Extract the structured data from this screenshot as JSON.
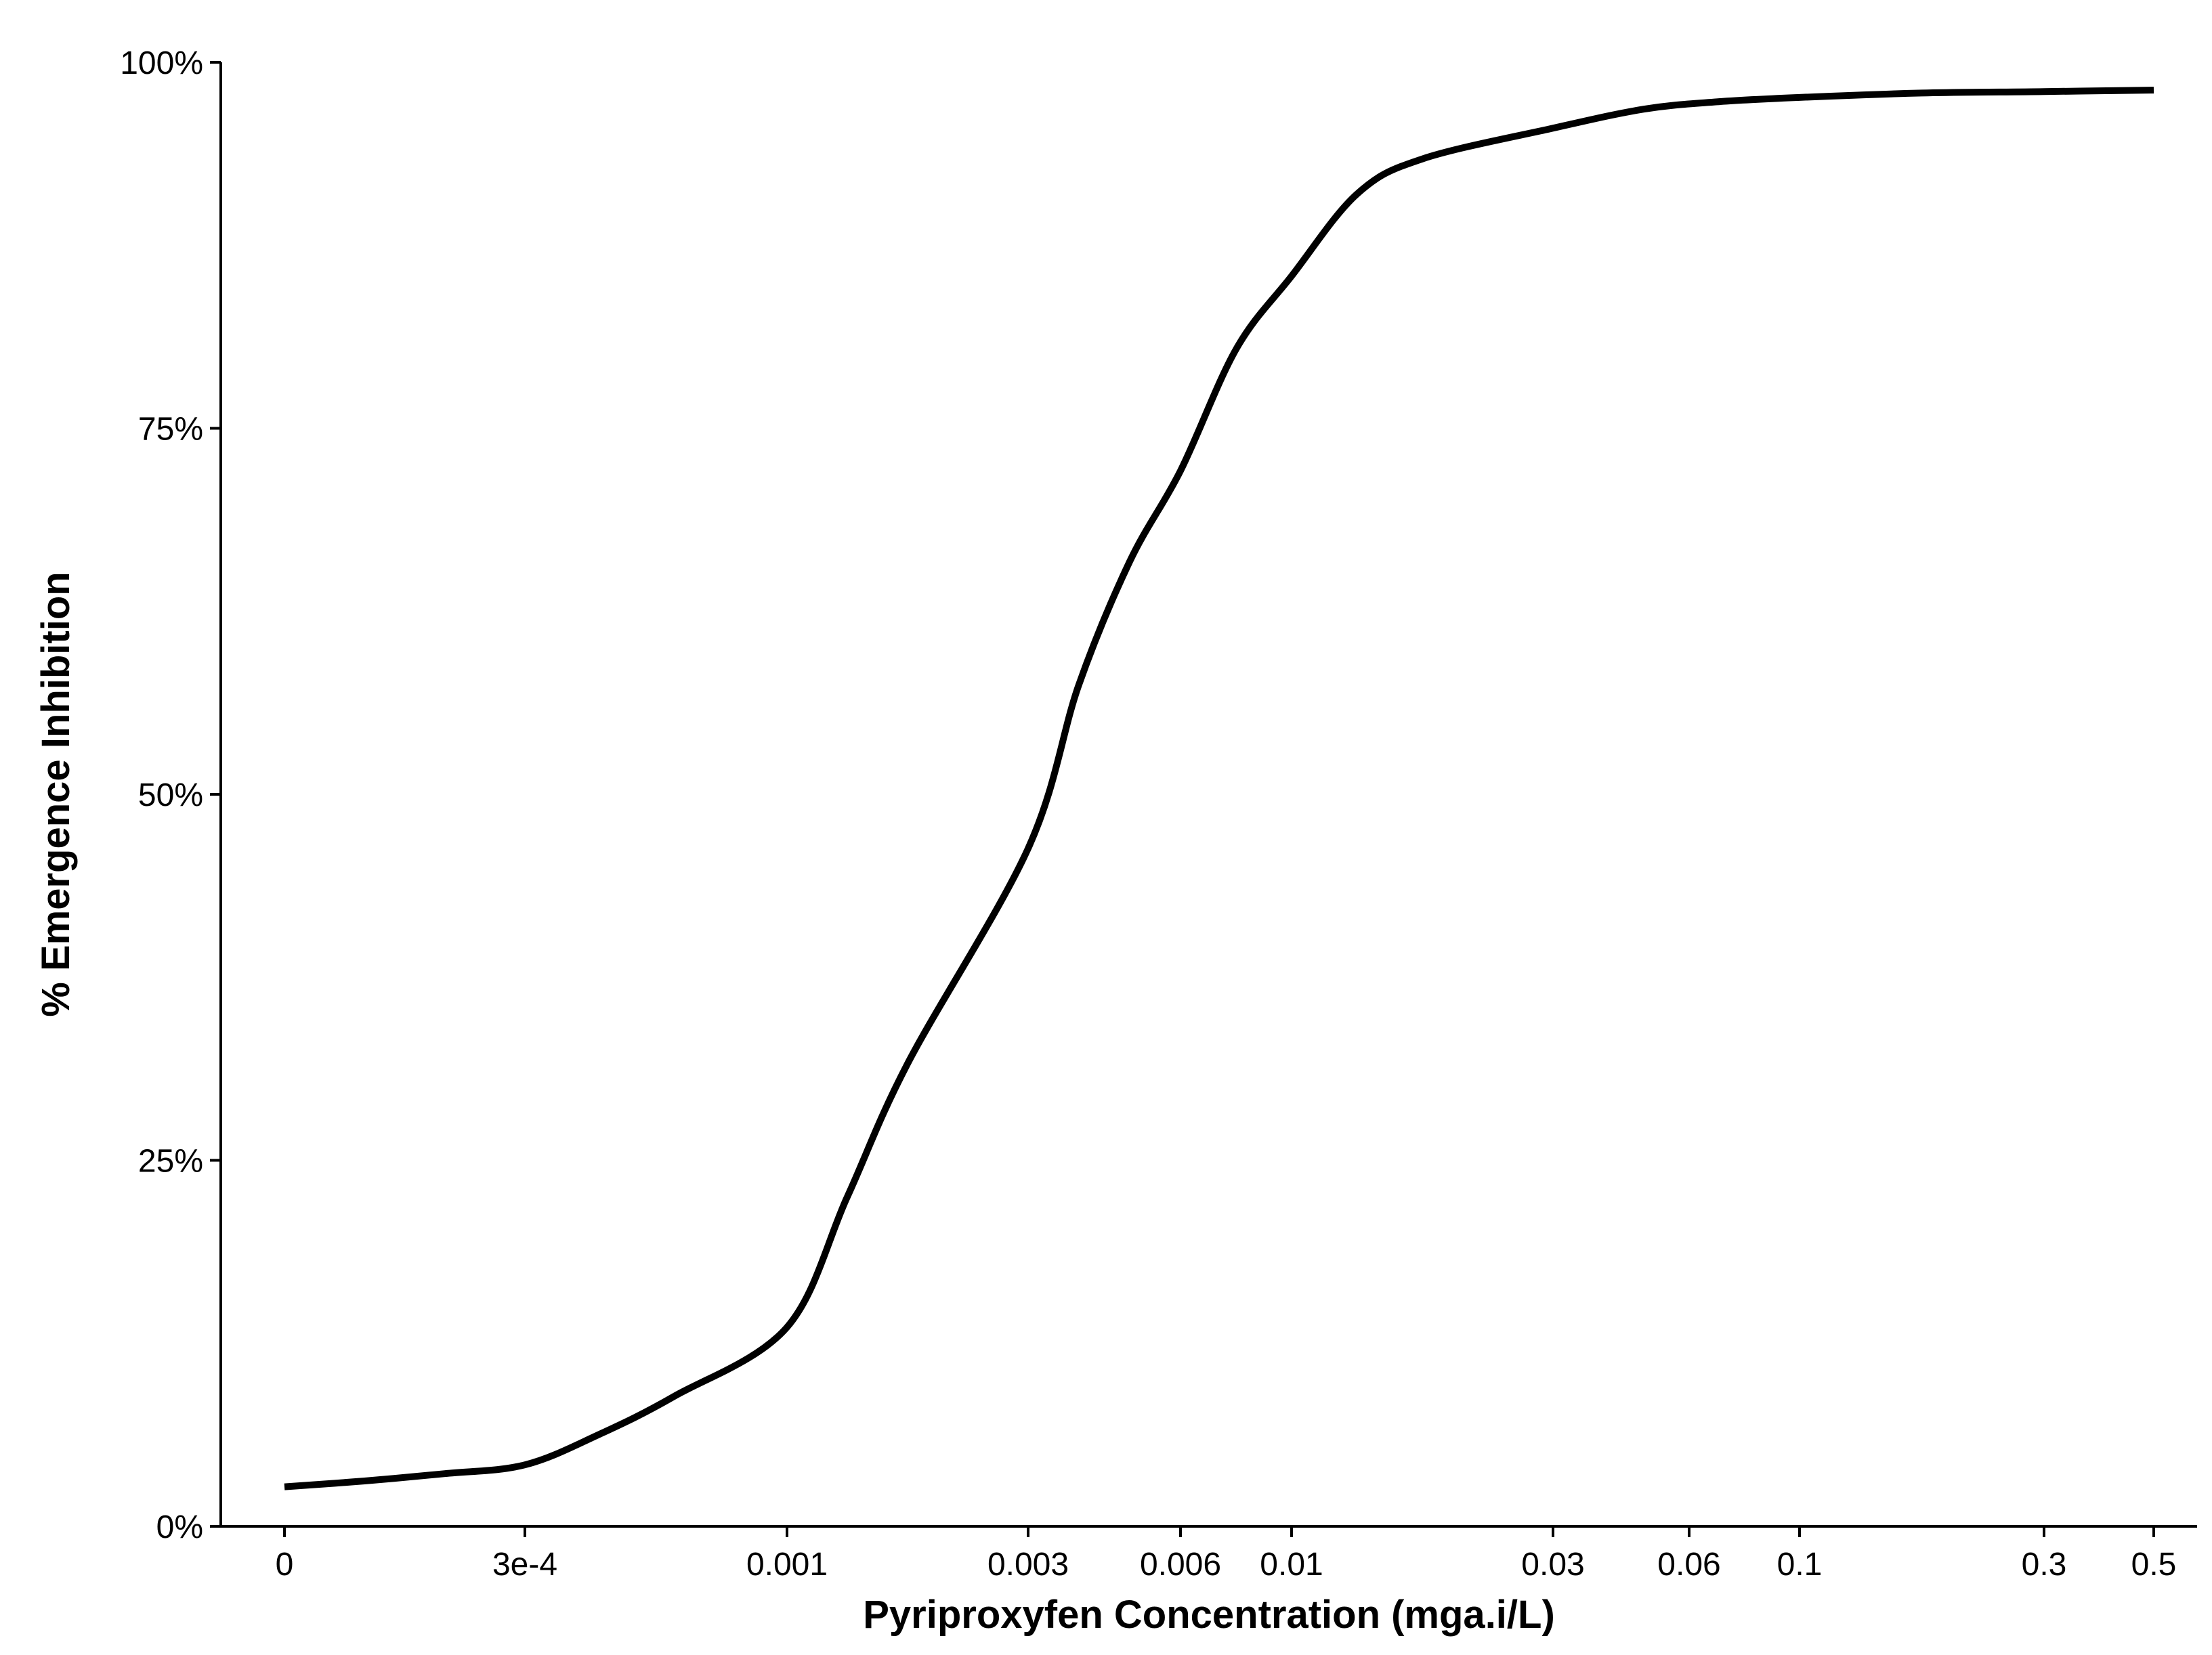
{
  "chart_data": {
    "type": "line",
    "title": "",
    "xlabel": "Pyriproxyfen Concentration (mga.i/L)",
    "ylabel": "% Emergence Inhibition",
    "x_scale": "log, 0 shown at far left",
    "x_ticks": [
      {
        "value": 0,
        "label": "0"
      },
      {
        "value": 0.0003,
        "label": "3e-4"
      },
      {
        "value": 0.001,
        "label": "0.001"
      },
      {
        "value": 0.003,
        "label": "0.003"
      },
      {
        "value": 0.006,
        "label": "0.006"
      },
      {
        "value": 0.01,
        "label": "0.01"
      },
      {
        "value": 0.03,
        "label": "0.03"
      },
      {
        "value": 0.06,
        "label": "0.06"
      },
      {
        "value": 0.1,
        "label": "0.1"
      },
      {
        "value": 0.3,
        "label": "0.3"
      },
      {
        "value": 0.5,
        "label": "0.5"
      }
    ],
    "y_ticks": [
      {
        "value": 0,
        "label": "0%"
      },
      {
        "value": 25,
        "label": "25%"
      },
      {
        "value": 50,
        "label": "50%"
      },
      {
        "value": 75,
        "label": "75%"
      },
      {
        "value": 100,
        "label": "100%"
      }
    ],
    "ylim": [
      0,
      100
    ],
    "grid": false,
    "legend": "none",
    "series": [
      {
        "x": [
          0,
          0.0001,
          0.0002,
          0.0003,
          0.0005,
          0.0007,
          0.001,
          0.0015,
          0.002,
          0.003,
          0.004,
          0.005,
          0.006,
          0.008,
          0.01,
          0.015,
          0.02,
          0.03,
          0.05,
          0.07,
          0.1,
          0.2,
          0.3,
          0.5
        ],
        "y": [
          2.7,
          3.1,
          3.6,
          4.2,
          6.3,
          8.9,
          13.6,
          22.5,
          31.6,
          46.3,
          57.5,
          65.9,
          72.1,
          80.4,
          85.4,
          91.0,
          93.4,
          95.5,
          96.8,
          97.3,
          97.6,
          97.9,
          98.0,
          98.1
        ]
      }
    ]
  }
}
